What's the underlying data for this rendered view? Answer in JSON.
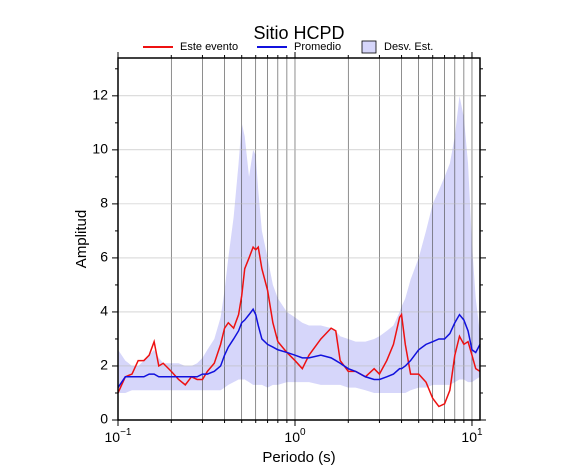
{
  "chart_data": {
    "type": "line",
    "title": "Sitio HCPD",
    "x_label": "Periodo (s)",
    "y_label": "Amplitud",
    "x": [
      0.1,
      0.11,
      0.12,
      0.13,
      0.14,
      0.15,
      0.16,
      0.17,
      0.18,
      0.2,
      0.22,
      0.24,
      0.26,
      0.28,
      0.3,
      0.32,
      0.35,
      0.38,
      0.4,
      0.42,
      0.45,
      0.48,
      0.5,
      0.52,
      0.55,
      0.58,
      0.6,
      0.62,
      0.65,
      0.7,
      0.75,
      0.8,
      0.9,
      1.0,
      1.1,
      1.2,
      1.4,
      1.6,
      1.7,
      1.8,
      2.0,
      2.2,
      2.5,
      2.8,
      3.0,
      3.3,
      3.6,
      3.9,
      4.0,
      4.2,
      4.5,
      5.0,
      5.5,
      6.0,
      6.5,
      7.0,
      7.5,
      8.0,
      8.5,
      9.0,
      9.5,
      10.0,
      10.5,
      11.1
    ],
    "series": [
      {
        "name": "Este evento",
        "color": "#ee1111",
        "values": [
          1.0,
          1.6,
          1.7,
          2.2,
          2.2,
          2.4,
          2.9,
          2.0,
          2.1,
          1.8,
          1.5,
          1.3,
          1.6,
          1.5,
          1.5,
          1.8,
          2.1,
          2.8,
          3.4,
          3.6,
          3.4,
          3.9,
          4.6,
          5.6,
          6.0,
          6.4,
          6.3,
          6.4,
          5.6,
          4.8,
          3.6,
          2.9,
          2.5,
          2.2,
          1.9,
          2.4,
          3.0,
          3.4,
          3.3,
          2.2,
          1.8,
          1.8,
          1.6,
          1.9,
          1.7,
          2.2,
          2.8,
          3.8,
          3.9,
          2.8,
          1.7,
          1.7,
          1.4,
          0.8,
          0.5,
          0.6,
          1.1,
          2.4,
          3.1,
          2.8,
          2.9,
          2.4,
          1.9,
          1.8
        ]
      },
      {
        "name": "Promedio",
        "color": "#1111dd",
        "values": [
          1.2,
          1.6,
          1.6,
          1.6,
          1.6,
          1.7,
          1.7,
          1.6,
          1.6,
          1.6,
          1.6,
          1.6,
          1.6,
          1.6,
          1.7,
          1.7,
          1.8,
          2.0,
          2.4,
          2.7,
          3.0,
          3.3,
          3.6,
          3.7,
          3.9,
          4.1,
          3.9,
          3.5,
          3.0,
          2.8,
          2.7,
          2.6,
          2.5,
          2.4,
          2.3,
          2.3,
          2.4,
          2.3,
          2.2,
          2.1,
          1.9,
          1.8,
          1.6,
          1.5,
          1.5,
          1.6,
          1.7,
          1.9,
          1.9,
          2.0,
          2.2,
          2.6,
          2.8,
          2.9,
          3.0,
          3.0,
          3.2,
          3.6,
          3.9,
          3.7,
          3.3,
          2.6,
          2.5,
          2.8
        ]
      }
    ],
    "band": {
      "name": "Desv. Est.",
      "color": "#d6d6fa",
      "upper": [
        2.6,
        2.2,
        2.0,
        2.0,
        2.2,
        2.4,
        2.6,
        2.3,
        2.1,
        2.1,
        2.1,
        2.0,
        2.0,
        2.1,
        2.3,
        2.6,
        3.0,
        3.8,
        4.8,
        6.0,
        7.5,
        9.5,
        11.0,
        10.5,
        9.0,
        10.0,
        9.8,
        8.5,
        7.0,
        6.0,
        5.0,
        4.5,
        4.0,
        3.8,
        3.6,
        3.5,
        3.5,
        3.4,
        3.3,
        3.1,
        3.0,
        2.9,
        2.9,
        3.0,
        3.1,
        3.3,
        3.5,
        4.0,
        4.2,
        4.5,
        5.2,
        6.0,
        7.0,
        8.0,
        8.5,
        9.0,
        9.5,
        10.5,
        12.0,
        11.2,
        9.5,
        6.5,
        4.5,
        3.2
      ],
      "lower": [
        1.0,
        1.0,
        1.1,
        1.1,
        1.1,
        1.1,
        1.1,
        1.1,
        1.1,
        1.1,
        1.1,
        1.1,
        1.1,
        1.1,
        1.1,
        1.1,
        1.1,
        1.1,
        1.2,
        1.3,
        1.4,
        1.5,
        1.5,
        1.5,
        1.4,
        1.3,
        1.3,
        1.3,
        1.3,
        1.2,
        1.3,
        1.3,
        1.4,
        1.4,
        1.4,
        1.4,
        1.3,
        1.3,
        1.3,
        1.3,
        1.2,
        1.2,
        1.1,
        1.0,
        1.0,
        1.0,
        1.0,
        1.0,
        1.0,
        1.0,
        1.1,
        1.2,
        1.2,
        1.3,
        1.3,
        1.3,
        1.3,
        1.4,
        1.5,
        1.5,
        1.4,
        1.4,
        1.5,
        1.6
      ]
    },
    "x_log": true,
    "xlim": [
      0.1,
      11.1
    ],
    "ylim": [
      0,
      13.4
    ],
    "xticks": [
      {
        "value": 0.1,
        "label": "10",
        "exponent": "−1"
      },
      {
        "value": 1,
        "label": "10",
        "exponent": "0"
      },
      {
        "value": 10,
        "label": "10",
        "exponent": "1"
      }
    ],
    "xgrid": [
      0.2,
      0.3,
      0.4,
      0.5,
      0.6,
      0.7,
      0.8,
      0.9,
      1,
      2,
      3,
      4,
      5,
      6,
      7,
      8,
      9,
      10
    ],
    "yticks": [
      0,
      2,
      4,
      6,
      8,
      10,
      12
    ],
    "yminor": [
      1,
      3,
      5,
      7,
      9,
      11,
      13
    ],
    "grid": true
  }
}
